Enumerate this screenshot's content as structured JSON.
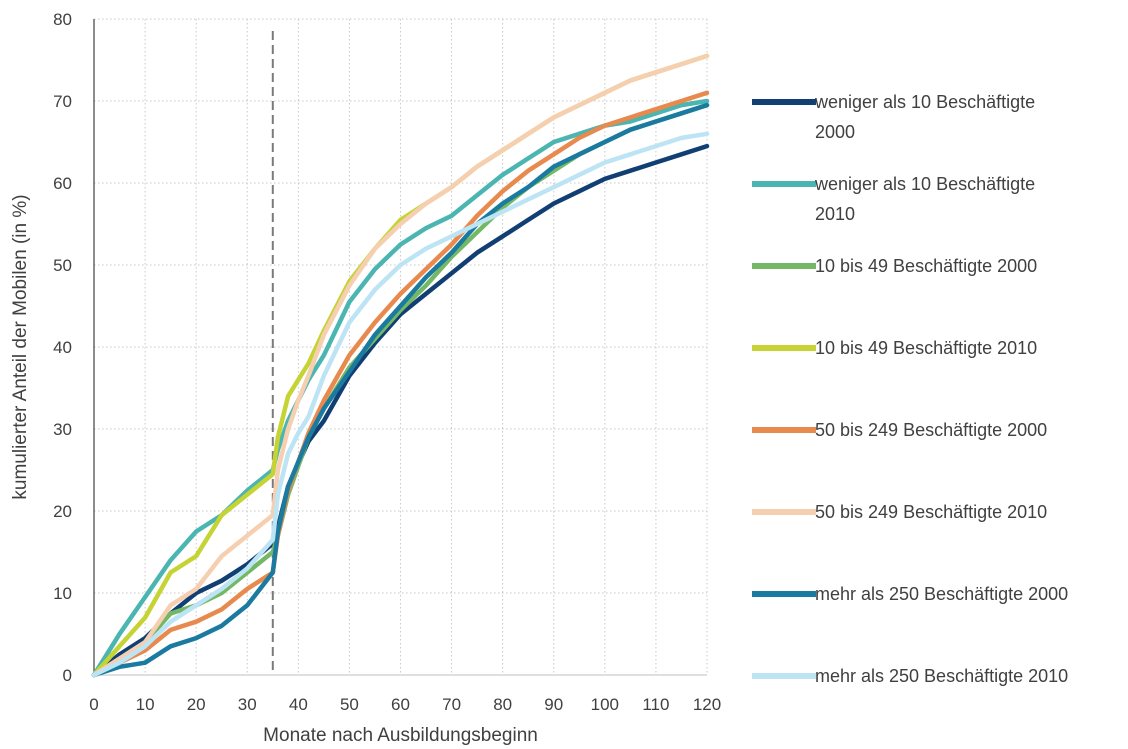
{
  "chart_data": {
    "type": "line",
    "title": "",
    "xlabel": "Monate nach Ausbildungsbeginn",
    "ylabel": "kumulierter Anteil der Mobilen (in %)",
    "xlim": [
      0,
      120
    ],
    "ylim": [
      0,
      80
    ],
    "xticks": [
      0,
      10,
      20,
      30,
      40,
      50,
      60,
      70,
      80,
      90,
      100,
      110,
      120
    ],
    "yticks": [
      0,
      10,
      20,
      30,
      40,
      50,
      60,
      70,
      80
    ],
    "grid": "dotted",
    "legend_position": "right",
    "reference_line": {
      "x": 35,
      "style": "dashed"
    },
    "series": [
      {
        "name": "weniger als 10 Beschäftigte 2000",
        "legend_lines": [
          "weniger als 10 Beschäftigte",
          "2000"
        ],
        "color": "#123f73",
        "x": [
          0,
          5,
          10,
          15,
          20,
          25,
          30,
          35,
          36,
          38,
          42,
          45,
          50,
          55,
          60,
          65,
          70,
          75,
          80,
          85,
          90,
          95,
          100,
          105,
          110,
          115,
          120
        ],
        "y": [
          0,
          2.5,
          4.5,
          7.5,
          10,
          11.5,
          13.5,
          16,
          18,
          23,
          28.5,
          31,
          36.5,
          40.5,
          44,
          46.5,
          49,
          51.5,
          53.5,
          55.5,
          57.5,
          59,
          60.5,
          61.5,
          62.5,
          63.5,
          64.5
        ]
      },
      {
        "name": "weniger als 10 Beschäftigte 2010",
        "legend_lines": [
          "weniger als 10 Beschäftigte",
          "2010"
        ],
        "color": "#4bb5b1",
        "x": [
          0,
          5,
          10,
          15,
          20,
          25,
          30,
          35,
          36,
          38,
          40,
          42,
          45,
          50,
          55,
          60,
          65,
          70,
          75,
          80,
          85,
          90,
          95,
          100,
          105,
          110,
          115,
          120
        ],
        "y": [
          0,
          5,
          9.5,
          14,
          17.5,
          19.5,
          22.5,
          25,
          27.5,
          31,
          33.5,
          36,
          39,
          45.5,
          49.5,
          52.5,
          54.5,
          56,
          58.5,
          61,
          63,
          65,
          66,
          67,
          67.5,
          68.5,
          69.5,
          70
        ]
      },
      {
        "name": "10 bis 49 Beschäftigte 2000",
        "legend_lines": [
          "10 bis 49 Beschäftigte 2000"
        ],
        "color": "#74b866",
        "x": [
          0,
          5,
          10,
          15,
          20,
          25,
          30,
          35,
          36,
          38,
          42,
          45,
          50,
          55,
          60,
          65,
          70,
          75,
          80,
          85,
          90,
          95,
          100,
          105,
          110,
          115,
          120
        ],
        "y": [
          0,
          2,
          4,
          7.5,
          8.5,
          10,
          12.5,
          15,
          17,
          22,
          29,
          32.5,
          37.5,
          41,
          44.5,
          47.5,
          51,
          54,
          57,
          59.5,
          61.5,
          63.5,
          65,
          66.5,
          67.5,
          68.5,
          69.5
        ]
      },
      {
        "name": "10 bis 49 Beschäftigte 2010",
        "legend_lines": [
          "10 bis 49 Beschäftigte 2010"
        ],
        "color": "#c5d434",
        "x": [
          0,
          5,
          10,
          15,
          20,
          25,
          30,
          35,
          36,
          38,
          40,
          42,
          45,
          50,
          55,
          60,
          65,
          70,
          75,
          80,
          85,
          90,
          95,
          100,
          105,
          110,
          115,
          120
        ],
        "y": [
          0,
          3.5,
          7,
          12.5,
          14.5,
          19.5,
          22,
          24.5,
          29,
          34,
          36,
          38,
          42,
          48,
          52,
          55.5,
          57.5,
          59.5,
          62,
          64,
          66,
          68,
          69.5,
          71,
          72.5,
          73.5,
          74.5,
          75.5
        ]
      },
      {
        "name": "50 bis 249 Beschäftigte 2000",
        "legend_lines": [
          "50 bis 249 Beschäftigte 2000"
        ],
        "color": "#e8894d",
        "x": [
          0,
          5,
          10,
          15,
          20,
          25,
          30,
          35,
          36,
          38,
          42,
          45,
          50,
          55,
          60,
          65,
          70,
          75,
          80,
          85,
          90,
          95,
          100,
          105,
          110,
          115,
          120
        ],
        "y": [
          0,
          1.5,
          3,
          5.5,
          6.5,
          8,
          10.5,
          12.5,
          17,
          22.5,
          29.5,
          33.5,
          39,
          43,
          46.5,
          49.5,
          52.5,
          56,
          59,
          61.5,
          63.5,
          65.5,
          67,
          68,
          69,
          70,
          71
        ]
      },
      {
        "name": "50 bis 249 Beschäftigte 2010",
        "legend_lines": [
          "50 bis 249 Beschäftigte 2010"
        ],
        "color": "#f6cfb1",
        "x": [
          0,
          5,
          10,
          15,
          20,
          25,
          30,
          35,
          36,
          38,
          40,
          42,
          45,
          50,
          55,
          60,
          65,
          70,
          75,
          80,
          85,
          90,
          95,
          100,
          105,
          110,
          115,
          120
        ],
        "y": [
          0,
          2,
          4,
          8.5,
          10.5,
          14.5,
          17,
          19.5,
          25,
          30,
          33.5,
          36.5,
          41.5,
          47.5,
          52,
          55,
          57.5,
          59.5,
          62,
          64,
          66,
          68,
          69.5,
          71,
          72.5,
          73.5,
          74.5,
          75.5
        ]
      },
      {
        "name": "mehr als 250 Beschäftigte 2000",
        "legend_lines": [
          "mehr als 250 Beschäftigte 2000"
        ],
        "color": "#1a7aa0",
        "x": [
          0,
          5,
          10,
          15,
          20,
          25,
          30,
          35,
          36,
          38,
          42,
          45,
          50,
          55,
          60,
          65,
          70,
          75,
          80,
          85,
          90,
          95,
          100,
          105,
          110,
          115,
          120
        ],
        "y": [
          0,
          1,
          1.5,
          3.5,
          4.5,
          6,
          8.5,
          12.5,
          17.5,
          23,
          29,
          32.5,
          37,
          41.5,
          45,
          48.5,
          51.5,
          55,
          57.5,
          59.5,
          62,
          63.5,
          65,
          66.5,
          67.5,
          68.5,
          69.5
        ]
      },
      {
        "name": "mehr als 250 Beschäftigte 2010",
        "legend_lines": [
          "mehr als 250 Beschäftigte 2010"
        ],
        "color": "#bde4f4",
        "x": [
          0,
          5,
          10,
          15,
          20,
          25,
          30,
          35,
          36,
          38,
          40,
          42,
          45,
          50,
          55,
          60,
          65,
          70,
          75,
          80,
          85,
          90,
          95,
          100,
          105,
          110,
          115,
          120
        ],
        "y": [
          0,
          1.5,
          3.5,
          6.5,
          8.5,
          10.5,
          13,
          16.5,
          22,
          27,
          29.5,
          31.5,
          36.5,
          43,
          47,
          50,
          52,
          53.5,
          55,
          56.5,
          58,
          59.5,
          61,
          62.5,
          63.5,
          64.5,
          65.5,
          66
        ]
      }
    ]
  }
}
